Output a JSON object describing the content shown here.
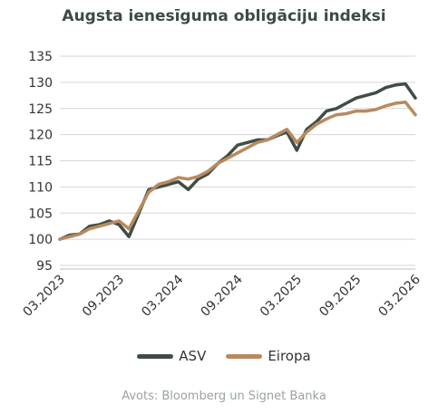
{
  "chart_data": {
    "type": "line",
    "title": "Augsta ienesīguma obligāciju indeksi",
    "xlabel": "",
    "ylabel": "",
    "ylim": [
      95,
      135
    ],
    "yticks": [
      95,
      100,
      105,
      110,
      115,
      120,
      125,
      130,
      135
    ],
    "xticks": [
      "03.2023",
      "09.2023",
      "03.2024",
      "09.2024",
      "03.2025",
      "09.2025",
      "03.2026"
    ],
    "grid": "horizontal",
    "legend_position": "bottom",
    "x": [
      "03.2023",
      "04.2023",
      "05.2023",
      "06.2023",
      "07.2023",
      "08.2023",
      "09.2023",
      "10.2023",
      "11.2023",
      "12.2023",
      "01.2024",
      "02.2024",
      "03.2024",
      "04.2024",
      "05.2024",
      "06.2024",
      "07.2024",
      "08.2024",
      "09.2024",
      "10.2024",
      "11.2024",
      "12.2024",
      "01.2025",
      "02.2025",
      "03.2025",
      "04.2025",
      "05.2025",
      "06.2025",
      "07.2025",
      "08.2025",
      "09.2025",
      "10.2025",
      "11.2025",
      "12.2025",
      "01.2026",
      "02.2026",
      "03.2026"
    ],
    "series": [
      {
        "name": "ASV",
        "color": "#3f4d45",
        "values": [
          100.0,
          100.8,
          101.0,
          102.5,
          102.8,
          103.5,
          102.8,
          100.5,
          105.0,
          109.5,
          110.0,
          110.5,
          111.0,
          109.5,
          111.5,
          112.5,
          114.5,
          116.0,
          118.0,
          118.5,
          119.0,
          119.0,
          119.8,
          120.5,
          117.0,
          121.0,
          122.5,
          124.5,
          125.0,
          126.0,
          127.0,
          127.5,
          128.0,
          129.0,
          129.5,
          129.7,
          127.0
        ]
      },
      {
        "name": "Eiropa",
        "color": "#b88a5e",
        "values": [
          100.0,
          100.5,
          101.0,
          102.0,
          102.5,
          103.0,
          103.5,
          102.0,
          105.5,
          109.0,
          110.5,
          111.0,
          111.8,
          111.5,
          112.0,
          113.0,
          114.5,
          115.5,
          116.5,
          117.5,
          118.5,
          119.0,
          120.0,
          121.0,
          118.5,
          120.5,
          122.0,
          123.0,
          123.8,
          124.0,
          124.5,
          124.5,
          124.8,
          125.5,
          126.0,
          126.2,
          123.8
        ]
      }
    ],
    "source": "Avots: Bloomberg un Signet Banka"
  }
}
